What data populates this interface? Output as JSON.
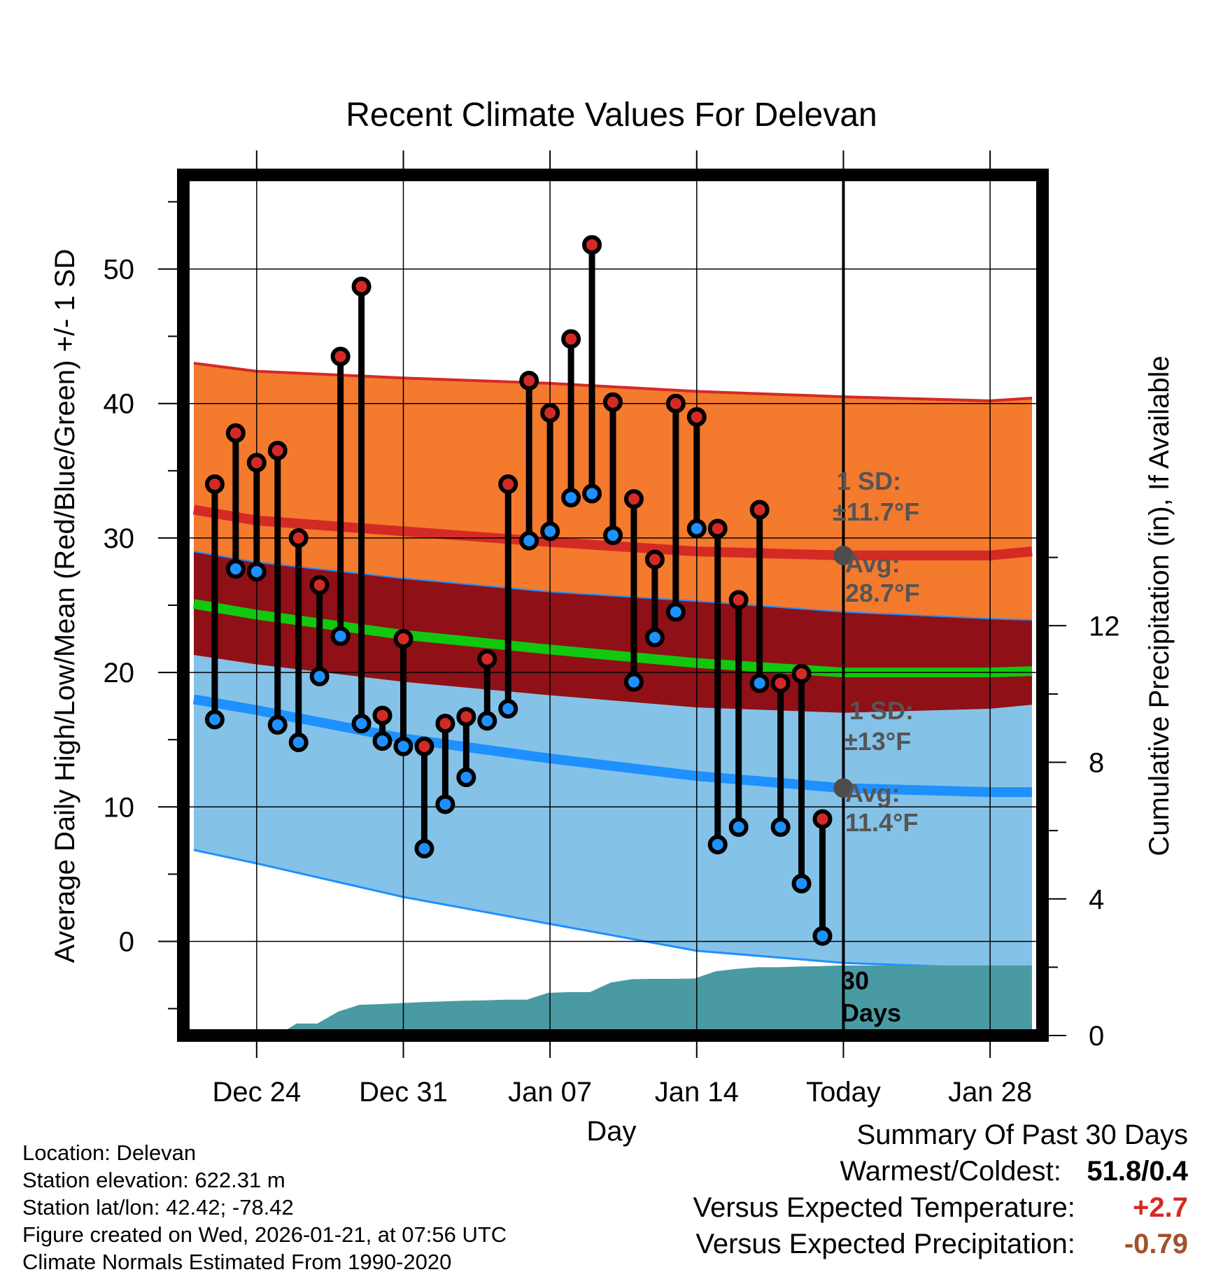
{
  "chart_data": {
    "type": "climate-range",
    "title": "Recent Climate Values For Delevan",
    "xlabel": "Day",
    "ylabel": "Average Daily High/Low/Mean (Red/Blue/Green) +/- 1 SD",
    "y2label": "Cumulative Precipitation (in), If Available",
    "ylim": [
      -7,
      57
    ],
    "y_ticks": [
      0,
      10,
      20,
      30,
      40,
      50
    ],
    "y2lim": [
      0,
      25.2
    ],
    "y2_ticks": [
      0,
      4,
      8,
      12
    ],
    "xlim": [
      -3.5,
      37.5
    ],
    "x_ticks": [
      {
        "pos": 0,
        "label": "Dec 24"
      },
      {
        "pos": 7,
        "label": "Dec 31"
      },
      {
        "pos": 14,
        "label": "Jan 07"
      },
      {
        "pos": 21,
        "label": "Jan 14"
      },
      {
        "pos": 28,
        "label": "Today"
      },
      {
        "pos": 35,
        "label": "Jan 28"
      }
    ],
    "today_pos": 28,
    "normals": {
      "x": [
        -3,
        0,
        7,
        14,
        21,
        28,
        35,
        37
      ],
      "high_mean": [
        32.1,
        31.3,
        30.5,
        29.7,
        29.0,
        28.7,
        28.7,
        29.0
      ],
      "high_upper": [
        43.0,
        42.4,
        41.9,
        41.5,
        40.9,
        40.5,
        40.2,
        40.4
      ],
      "high_lower": [
        29.0,
        28.2,
        27.0,
        26.0,
        25.3,
        24.5,
        24.0,
        23.9
      ],
      "low_mean": [
        18.0,
        17.2,
        15.1,
        13.6,
        12.3,
        11.4,
        11.1,
        11.1
      ],
      "low_upper": [
        21.3,
        20.6,
        19.3,
        18.3,
        17.4,
        17.0,
        17.3,
        17.6
      ],
      "low_lower": [
        6.8,
        5.8,
        3.3,
        1.3,
        -0.7,
        -1.6,
        -2.0,
        -2.0
      ],
      "avg_mean": [
        25.1,
        24.3,
        22.8,
        21.7,
        20.7,
        20.0,
        20.0,
        20.1
      ]
    },
    "annotations": {
      "high": {
        "sd": "1 SD:",
        "sd_value": "±11.7°F",
        "avg": "Avg:",
        "avg_value": "28.7°F",
        "value": 28.7
      },
      "low": {
        "sd": "1 SD:",
        "sd_value": "±13°F",
        "avg": "Avg:",
        "avg_value": "11.4°F",
        "value": 11.4
      },
      "precip_days": "30",
      "precip_days_label": "Days"
    },
    "daily": {
      "x": [
        -2,
        -1,
        0,
        1,
        2,
        3,
        4,
        5,
        6,
        7,
        8,
        9,
        10,
        11,
        12,
        13,
        14,
        15,
        16,
        17,
        18,
        19,
        20,
        21,
        22,
        23,
        24,
        25,
        26,
        27
      ],
      "high": [
        34.0,
        37.8,
        35.6,
        36.5,
        30.0,
        26.5,
        43.5,
        48.7,
        16.8,
        22.5,
        14.5,
        16.2,
        16.7,
        21.0,
        34.0,
        41.7,
        39.3,
        44.8,
        51.8,
        40.1,
        32.9,
        28.4,
        40.0,
        39.0,
        30.7,
        25.4,
        32.1,
        19.2,
        19.9,
        9.1
      ],
      "low": [
        16.5,
        27.7,
        27.5,
        16.1,
        14.8,
        19.7,
        22.7,
        16.2,
        14.9,
        14.5,
        6.9,
        10.2,
        12.2,
        16.4,
        17.3,
        29.8,
        30.5,
        33.0,
        33.3,
        30.2,
        19.3,
        22.6,
        24.5,
        30.7,
        7.2,
        8.5,
        19.2,
        8.5,
        4.3,
        0.4
      ]
    },
    "precip": {
      "x": [
        -3,
        1,
        1.9,
        2.9,
        3.9,
        4.9,
        5.9,
        6.9,
        7.9,
        8.9,
        9.9,
        10.9,
        11.9,
        12.9,
        13.9,
        14.9,
        15.9,
        16.9,
        17.9,
        18.9,
        19.9,
        20.9,
        21.9,
        22.9,
        23.9,
        24.9,
        25.9,
        26.9,
        27.9,
        28,
        37
      ],
      "values": [
        0,
        0,
        0.35,
        0.35,
        0.7,
        0.9,
        0.92,
        0.95,
        0.98,
        1.0,
        1.02,
        1.03,
        1.05,
        1.05,
        1.25,
        1.27,
        1.27,
        1.55,
        1.65,
        1.66,
        1.66,
        1.67,
        1.88,
        1.95,
        2.0,
        2.0,
        2.02,
        2.03,
        2.05,
        2.05,
        2.05
      ]
    },
    "colors": {
      "high_band": "#f47a2e",
      "high_line": "#d42a26",
      "overlap_band": "#8f1016",
      "avg_line": "#10c80f",
      "low_band": "#85c2e8",
      "low_line": "#1e90ff",
      "precip": "#4a9aa3",
      "high_marker": "#d42a26",
      "low_marker": "#1e90ff",
      "annotation": "#555555",
      "annotation_dot": "#4d4d4d"
    }
  },
  "footer": {
    "location": "Location: Delevan",
    "elevation": "Station elevation: 622.31 m",
    "latlon": "Station lat/lon: 42.42; -78.42",
    "created": "Figure created on Wed, 2026-01-21, at 07:56 UTC",
    "normals": "Climate Normals Estimated From 1990-2020"
  },
  "summary": {
    "title": "Summary Of Past 30 Days",
    "warm_cold_label": "Warmest/Coldest:",
    "warm_cold_value": "51.8/0.4",
    "temp_label": "Versus Expected Temperature:",
    "temp_value": "+2.7",
    "temp_color": "#d42a26",
    "precip_label": "Versus Expected Precipitation:",
    "precip_value": "-0.79",
    "precip_color": "#a0522d"
  }
}
